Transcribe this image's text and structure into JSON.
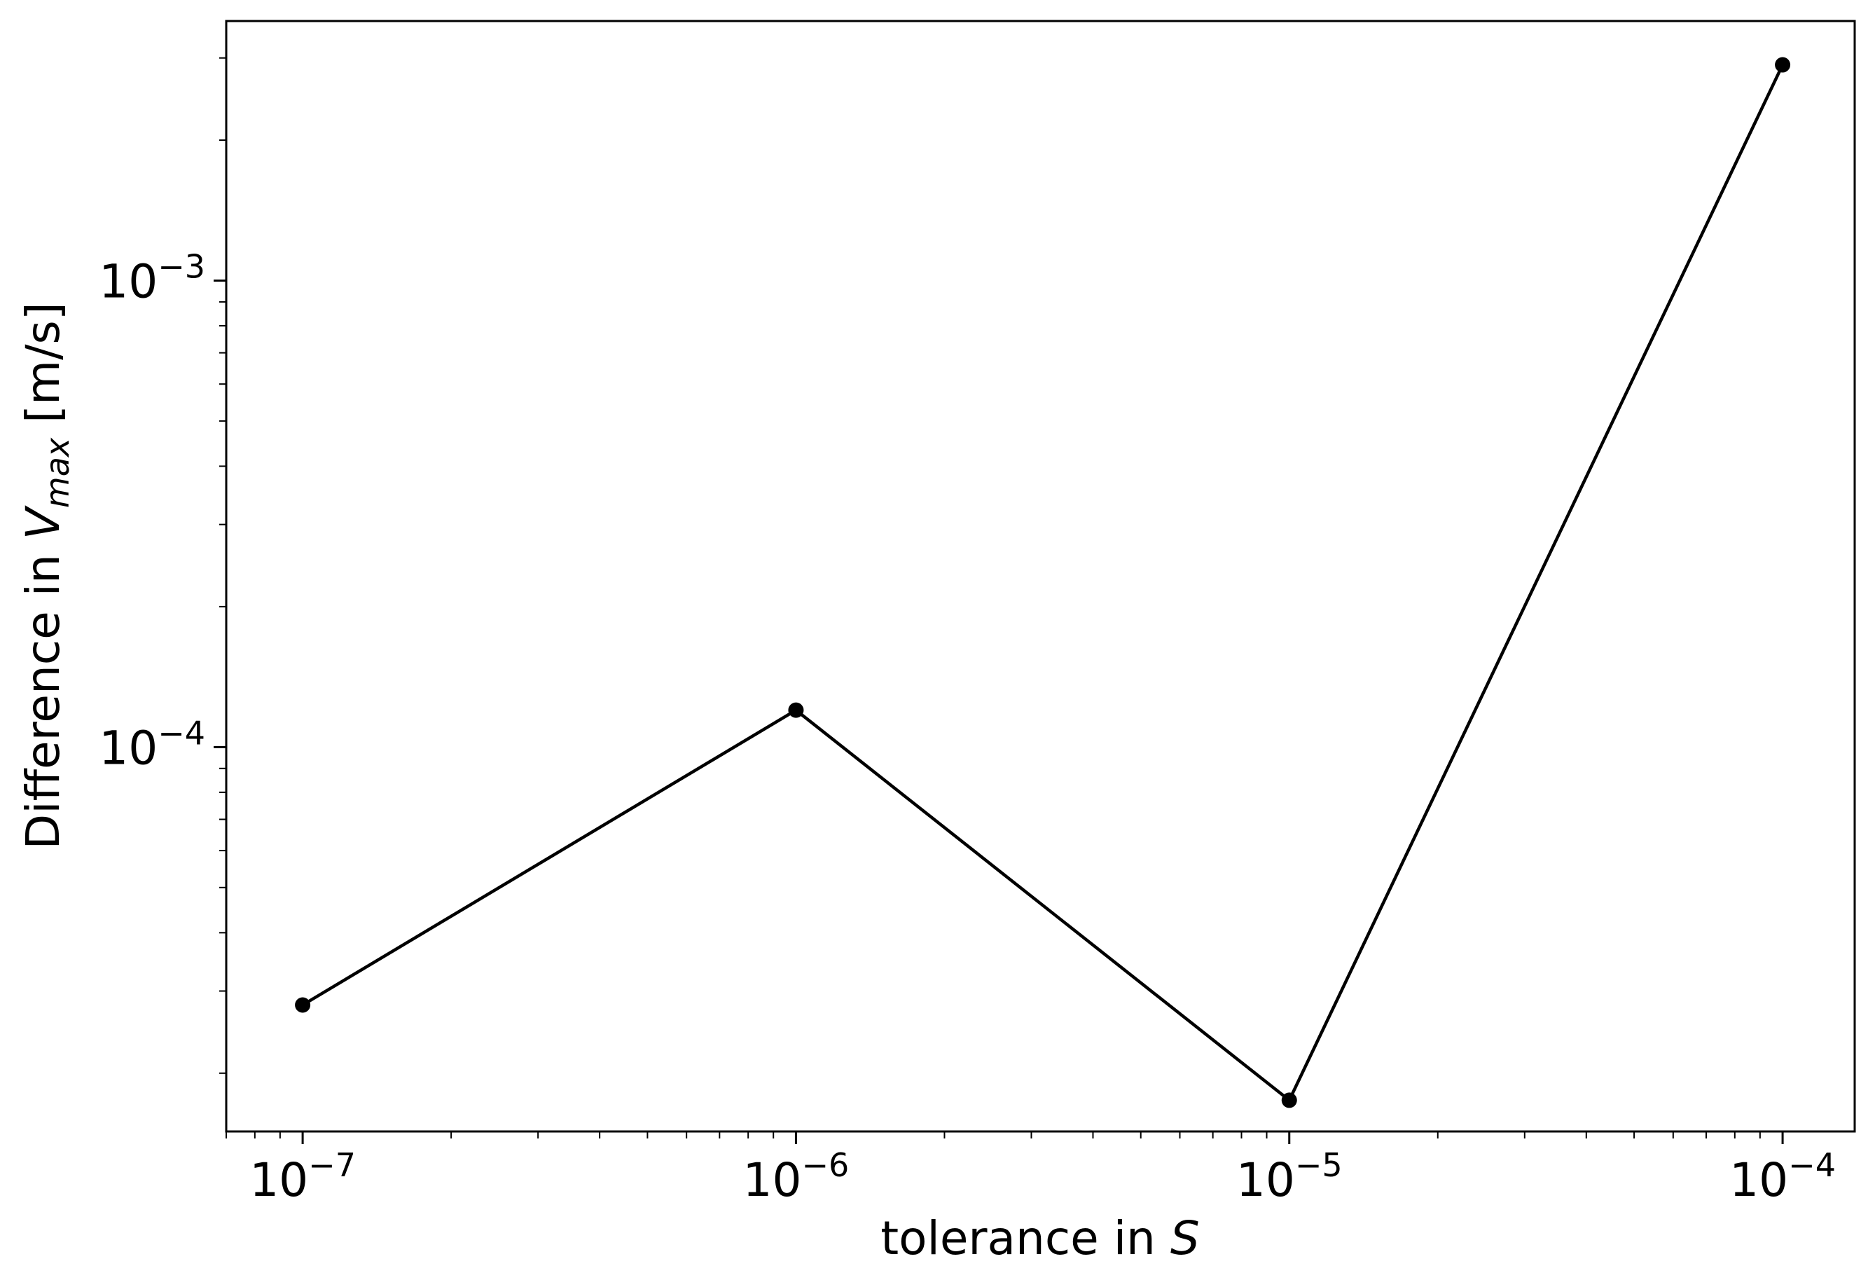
{
  "chart_data": {
    "type": "line",
    "title": "",
    "x_scale": "log",
    "y_scale": "log",
    "xlim": [
      7e-08,
      0.00014
    ],
    "ylim": [
      1.5e-05,
      0.0036
    ],
    "xlabel": {
      "prefix": "tolerance in ",
      "symbol": "S"
    },
    "ylabel": {
      "prefix": "Difference in ",
      "symbol": "V",
      "subscript": "max",
      "suffix": " [m/s]"
    },
    "x_ticks": [
      {
        "value": 1e-07,
        "base": "10",
        "exponent": "−7"
      },
      {
        "value": 1e-06,
        "base": "10",
        "exponent": "−6"
      },
      {
        "value": 1e-05,
        "base": "10",
        "exponent": "−5"
      },
      {
        "value": 0.0001,
        "base": "10",
        "exponent": "−4"
      }
    ],
    "y_ticks": [
      {
        "value": 0.0001,
        "base": "10",
        "exponent": "−4"
      },
      {
        "value": 0.001,
        "base": "10",
        "exponent": "−3"
      }
    ],
    "series": [
      {
        "name": "difference",
        "color": "#000000",
        "marker": "circle",
        "x": [
          1e-07,
          1e-06,
          1e-05,
          0.0001
        ],
        "y": [
          2.8e-05,
          0.00012,
          1.75e-05,
          0.0029
        ]
      }
    ]
  }
}
